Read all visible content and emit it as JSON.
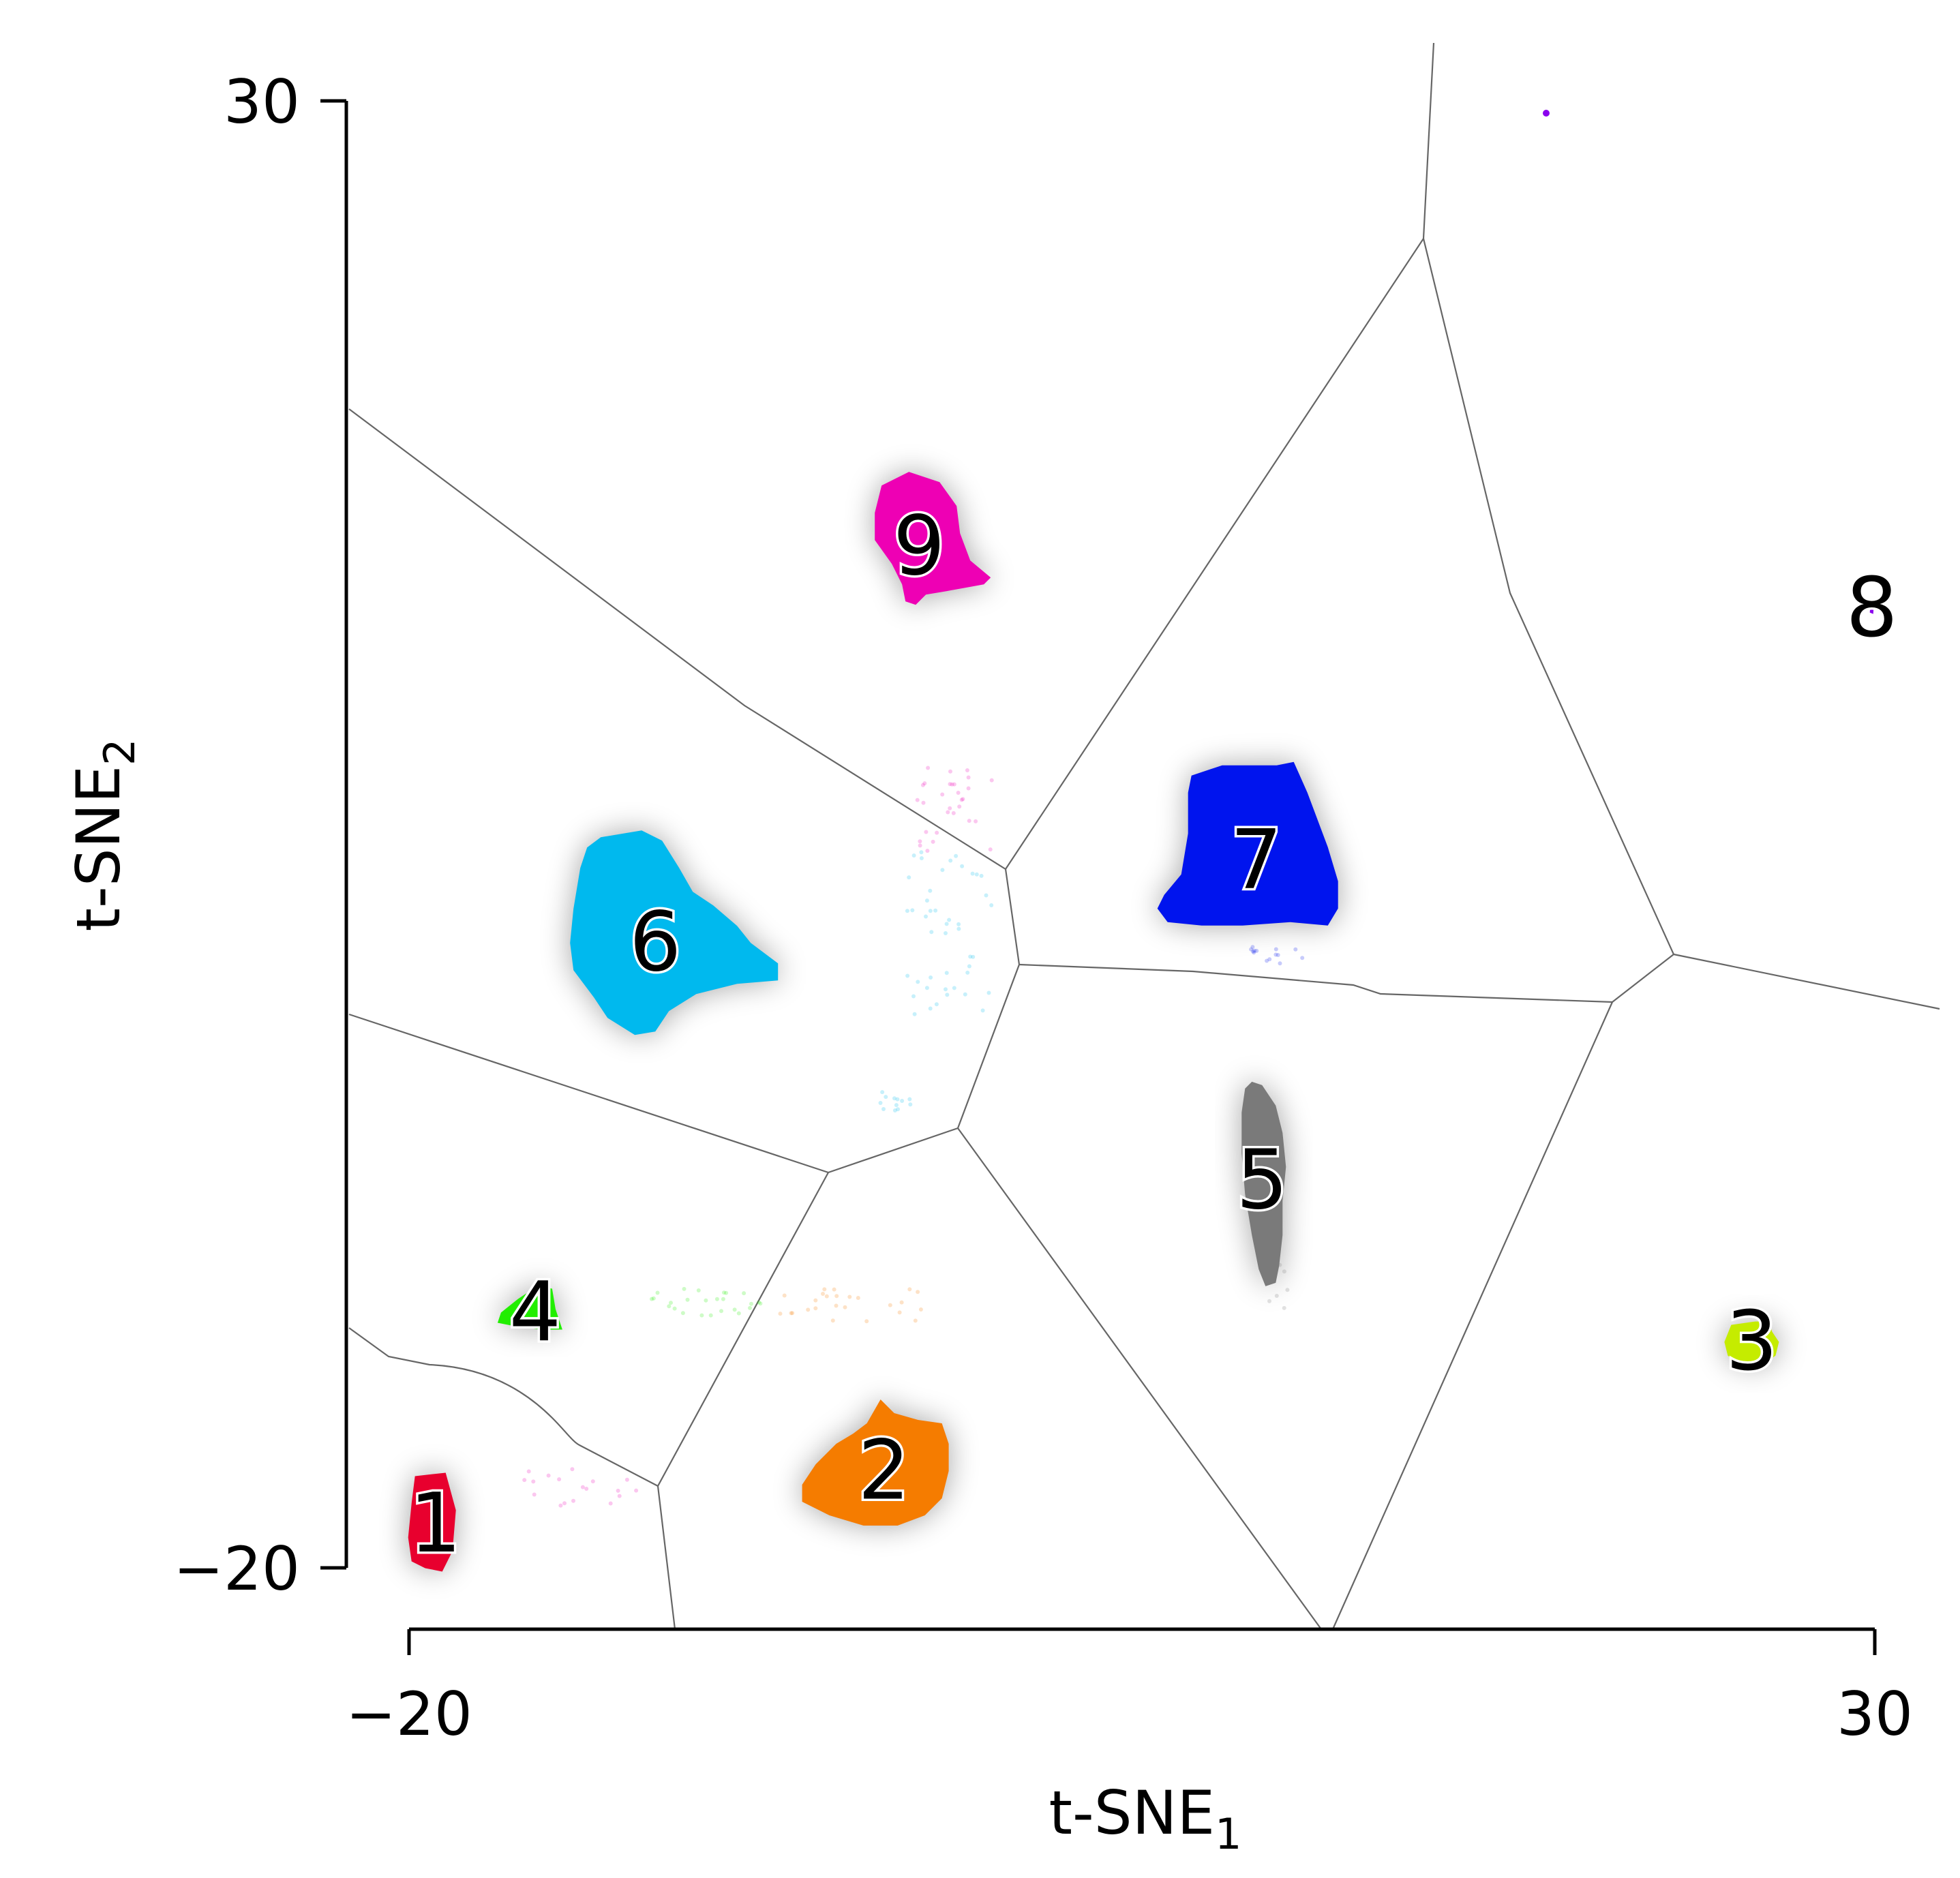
{
  "chart_data": {
    "type": "scatter",
    "xlabel": "t-SNE",
    "xlabel_sub": "1",
    "ylabel": "t-SNE",
    "ylabel_sub": "2",
    "xlim": [
      -20,
      30
    ],
    "ylim": [
      -20,
      30
    ],
    "xticks": [
      {
        "value": -20,
        "label": "−20"
      },
      {
        "value": 30,
        "label": "30"
      }
    ],
    "yticks": [
      {
        "value": -20,
        "label": "−20"
      },
      {
        "value": 30,
        "label": "30"
      }
    ],
    "grid": false,
    "legend": "none",
    "background_partition": "voronoi",
    "partition_color": "#666666",
    "clusters": [
      {
        "label": "1",
        "color": "#e8002e",
        "center": [
          -19.1,
          -18.5
        ]
      },
      {
        "label": "2",
        "color": "#f57c00",
        "center": [
          -3.8,
          -16.7
        ]
      },
      {
        "label": "3",
        "color": "#c5ec00",
        "center": [
          25.8,
          -12.3
        ]
      },
      {
        "label": "4",
        "color": "#22ee00",
        "center": [
          -15.7,
          -11.3
        ]
      },
      {
        "label": "5",
        "color": "#7a7a7a",
        "center": [
          9.1,
          -6.8
        ]
      },
      {
        "label": "6",
        "color": "#00b9ee",
        "center": [
          -11.6,
          1.3
        ]
      },
      {
        "label": "7",
        "color": "#0014ee",
        "center": [
          8.9,
          4.1
        ]
      },
      {
        "label": "8",
        "color": "#8a00ee",
        "center": [
          29.9,
          12.7
        ]
      },
      {
        "label": "9",
        "color": "#ee00b4",
        "center": [
          -2.6,
          14.8
        ]
      }
    ]
  }
}
